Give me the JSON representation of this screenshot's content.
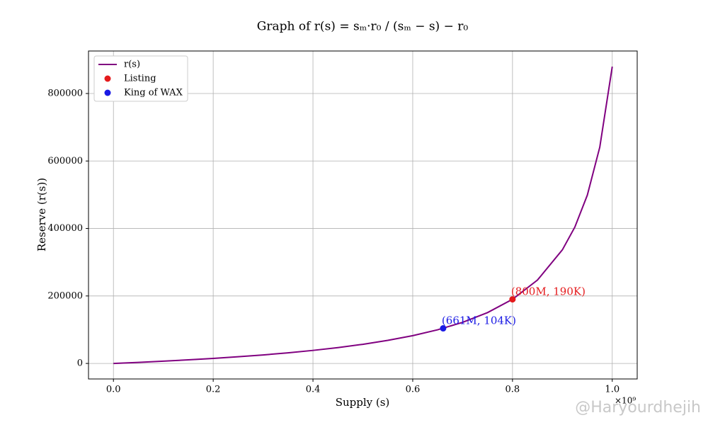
{
  "chart_data": {
    "type": "line",
    "title": "Graph of r(s) = sₘ·r₀ / (sₘ − s) − r₀",
    "xlabel": "Supply (s)",
    "ylabel": "Reserve (r(s))",
    "x_offset": "×10⁹",
    "x": [
      0,
      0.05,
      0.1,
      0.15,
      0.2,
      0.25,
      0.3,
      0.35,
      0.4,
      0.45,
      0.5,
      0.55,
      0.6,
      0.65,
      0.7,
      0.75,
      0.8,
      0.85,
      0.9,
      0.925,
      0.95,
      0.975,
      1.0
    ],
    "series": [
      {
        "name": "r(s)",
        "color": "#800080",
        "values": [
          0,
          3179,
          6684,
          10568,
          14897,
          19751,
          25233,
          31471,
          38635,
          46947,
          56707,
          68330,
          82405,
          99800,
          121845,
          150694,
          190073,
          247031,
          336724,
          404148,
          498750,
          641136,
          879730
        ]
      }
    ],
    "points": [
      {
        "name": "Listing",
        "color": "#e41a1c",
        "x": 0.8,
        "y": 190000,
        "label": "(800M, 190K)"
      },
      {
        "name": "King of WAX",
        "color": "#1a1ae4",
        "x": 0.661,
        "y": 104000,
        "label": "(661M, 104K)"
      }
    ],
    "xlim": [
      -0.05,
      1.05
    ],
    "ylim": [
      -46000,
      926000
    ],
    "xticks": [
      {
        "value": 0,
        "label": "0.0"
      },
      {
        "value": 0.2,
        "label": "0.2"
      },
      {
        "value": 0.4,
        "label": "0.4"
      },
      {
        "value": 0.6,
        "label": "0.6"
      },
      {
        "value": 0.8,
        "label": "0.8"
      },
      {
        "value": 1,
        "label": "1.0"
      }
    ],
    "yticks": [
      0,
      200000,
      400000,
      600000,
      800000
    ],
    "grid": true,
    "legend": "upper left"
  },
  "watermark": "@Haryourdhejih"
}
